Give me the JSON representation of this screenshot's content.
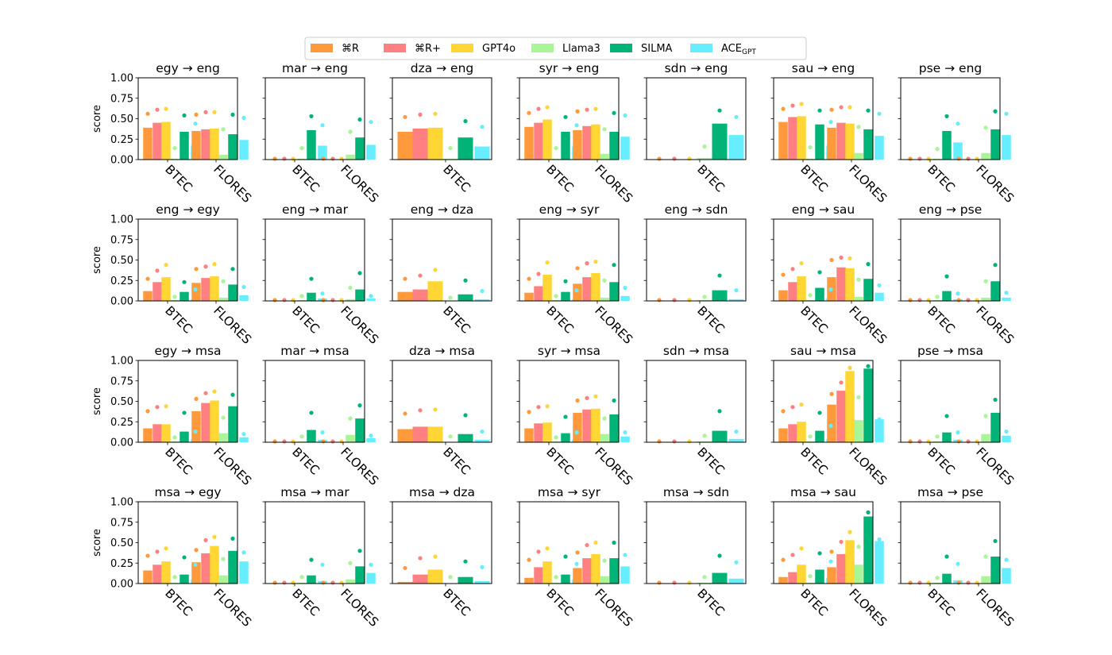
{
  "legend": [
    {
      "label": "⌘R",
      "color": "#ff9a3c"
    },
    {
      "label": "⌘R+",
      "color": "#ff8080"
    },
    {
      "label": "GPT4o",
      "color": "#ffd633"
    },
    {
      "label": "Llama3",
      "color": "#aaf598"
    },
    {
      "label": "SILMA",
      "color": "#00b377"
    },
    {
      "label": "ACE",
      "label_sub": "GPT",
      "color": "#66eeff"
    }
  ],
  "ylabel": "score",
  "y_ticks": [
    "0.00",
    "0.25",
    "0.50",
    "0.75",
    "1.00"
  ],
  "chart_data": {
    "type": "bar",
    "layout": "grid 4 rows x 7 columns",
    "ylim": [
      0,
      1
    ],
    "ylabel": "score",
    "series_names": [
      "⌘R",
      "⌘R+",
      "GPT4o",
      "Llama3",
      "SILMA",
      "ACE_GPT"
    ],
    "value_encoding": "bars = values, dots = dots",
    "panels": [
      {
        "title": "egy → eng",
        "categories": [
          "BTEC",
          "FLORES"
        ],
        "values": [
          [
            0.39,
            0.45,
            0.46,
            0.01,
            0.34,
            0.17
          ],
          [
            0.35,
            0.37,
            0.38,
            0.06,
            0.31,
            0.24
          ]
        ],
        "dots": [
          [
            0.56,
            0.61,
            0.62,
            0.14,
            0.54,
            0.44
          ],
          [
            0.55,
            0.58,
            0.58,
            0.37,
            0.55,
            0.51
          ]
        ]
      },
      {
        "title": "mar → eng",
        "categories": [
          "BTEC",
          "FLORES"
        ],
        "values": [
          [
            0.0,
            0.0,
            0.0,
            0.01,
            0.36,
            0.17
          ],
          [
            0.0,
            0.0,
            0.0,
            0.06,
            0.27,
            0.18
          ]
        ],
        "dots": [
          [
            0.01,
            0.01,
            0.01,
            0.14,
            0.53,
            0.42
          ],
          [
            0.01,
            0.01,
            0.01,
            0.34,
            0.49,
            0.46
          ]
        ]
      },
      {
        "title": "dza → eng",
        "categories": [
          "BTEC"
        ],
        "values": [
          [
            0.34,
            0.38,
            0.39,
            0.01,
            0.27,
            0.16
          ]
        ],
        "dots": [
          [
            0.52,
            0.55,
            0.56,
            0.14,
            0.47,
            0.4
          ]
        ]
      },
      {
        "title": "syr → eng",
        "categories": [
          "BTEC",
          "FLORES"
        ],
        "values": [
          [
            0.4,
            0.45,
            0.49,
            0.01,
            0.34,
            0.16
          ],
          [
            0.36,
            0.41,
            0.43,
            0.07,
            0.34,
            0.28
          ]
        ],
        "dots": [
          [
            0.57,
            0.62,
            0.64,
            0.14,
            0.52,
            0.42
          ],
          [
            0.59,
            0.61,
            0.62,
            0.37,
            0.57,
            0.54
          ]
        ]
      },
      {
        "title": "sdn → eng",
        "categories": [
          "BTEC"
        ],
        "values": [
          [
            0.0,
            0.0,
            0.0,
            0.02,
            0.44,
            0.3
          ]
        ],
        "dots": [
          [
            0.01,
            0.01,
            0.01,
            0.16,
            0.6,
            0.52
          ]
        ]
      },
      {
        "title": "sau → eng",
        "categories": [
          "BTEC",
          "FLORES"
        ],
        "values": [
          [
            0.46,
            0.52,
            0.53,
            0.01,
            0.43,
            0.17
          ],
          [
            0.39,
            0.45,
            0.44,
            0.08,
            0.37,
            0.29
          ]
        ],
        "dots": [
          [
            0.62,
            0.66,
            0.68,
            0.15,
            0.6,
            0.46
          ],
          [
            0.61,
            0.64,
            0.64,
            0.4,
            0.6,
            0.56
          ]
        ]
      },
      {
        "title": "pse → eng",
        "categories": [
          "BTEC",
          "FLORES"
        ],
        "values": [
          [
            0.0,
            0.0,
            0.0,
            0.01,
            0.35,
            0.21
          ],
          [
            0.0,
            0.0,
            0.0,
            0.08,
            0.37,
            0.3
          ]
        ],
        "dots": [
          [
            0.01,
            0.01,
            0.01,
            0.13,
            0.53,
            0.44
          ],
          [
            0.01,
            0.01,
            0.01,
            0.39,
            0.59,
            0.56
          ]
        ]
      },
      {
        "title": "eng → egy",
        "categories": [
          "BTEC",
          "FLORES"
        ],
        "values": [
          [
            0.12,
            0.23,
            0.29,
            0.01,
            0.11,
            0.02
          ],
          [
            0.22,
            0.28,
            0.3,
            0.04,
            0.2,
            0.07
          ]
        ],
        "dots": [
          [
            0.27,
            0.37,
            0.44,
            0.05,
            0.23,
            0.14
          ],
          [
            0.39,
            0.42,
            0.45,
            0.24,
            0.39,
            0.17
          ]
        ]
      },
      {
        "title": "eng → mar",
        "categories": [
          "BTEC",
          "FLORES"
        ],
        "values": [
          [
            0.0,
            0.0,
            0.0,
            0.01,
            0.1,
            0.03
          ],
          [
            0.0,
            0.0,
            0.0,
            0.02,
            0.14,
            0.03
          ]
        ],
        "dots": [
          [
            0.01,
            0.01,
            0.01,
            0.06,
            0.27,
            0.09
          ],
          [
            0.01,
            0.01,
            0.01,
            0.16,
            0.34,
            0.06
          ]
        ]
      },
      {
        "title": "eng → dza",
        "categories": [
          "BTEC"
        ],
        "values": [
          [
            0.11,
            0.14,
            0.24,
            0.0,
            0.08,
            0.02
          ]
        ],
        "dots": [
          [
            0.27,
            0.31,
            0.38,
            0.04,
            0.25,
            0.12
          ]
        ]
      },
      {
        "title": "eng → syr",
        "categories": [
          "BTEC",
          "FLORES"
        ],
        "values": [
          [
            0.1,
            0.18,
            0.32,
            0.01,
            0.11,
            0.02
          ],
          [
            0.21,
            0.29,
            0.34,
            0.04,
            0.23,
            0.06
          ]
        ],
        "dots": [
          [
            0.27,
            0.33,
            0.47,
            0.06,
            0.24,
            0.13
          ],
          [
            0.4,
            0.46,
            0.48,
            0.25,
            0.44,
            0.16
          ]
        ]
      },
      {
        "title": "eng → sdn",
        "categories": [
          "BTEC"
        ],
        "values": [
          [
            0.0,
            0.0,
            0.0,
            0.01,
            0.13,
            0.02
          ]
        ],
        "dots": [
          [
            0.01,
            0.01,
            0.01,
            0.05,
            0.31,
            0.13
          ]
        ]
      },
      {
        "title": "eng → sau",
        "categories": [
          "BTEC",
          "FLORES"
        ],
        "values": [
          [
            0.13,
            0.23,
            0.3,
            0.01,
            0.16,
            0.03
          ],
          [
            0.29,
            0.41,
            0.4,
            0.05,
            0.27,
            0.1
          ]
        ],
        "dots": [
          [
            0.32,
            0.39,
            0.46,
            0.07,
            0.35,
            0.14
          ],
          [
            0.5,
            0.53,
            0.52,
            0.26,
            0.45,
            0.19
          ]
        ]
      },
      {
        "title": "eng → pse",
        "categories": [
          "BTEC",
          "FLORES"
        ],
        "values": [
          [
            0.0,
            0.0,
            0.0,
            0.01,
            0.12,
            0.02
          ],
          [
            0.0,
            0.0,
            0.0,
            0.04,
            0.24,
            0.04
          ]
        ],
        "dots": [
          [
            0.01,
            0.01,
            0.01,
            0.05,
            0.3,
            0.09
          ],
          [
            0.01,
            0.01,
            0.01,
            0.24,
            0.44,
            0.1
          ]
        ]
      },
      {
        "title": "egy → msa",
        "categories": [
          "BTEC",
          "FLORES"
        ],
        "values": [
          [
            0.17,
            0.22,
            0.22,
            0.01,
            0.13,
            0.04
          ],
          [
            0.38,
            0.48,
            0.51,
            0.11,
            0.44,
            0.06
          ]
        ],
        "dots": [
          [
            0.38,
            0.43,
            0.44,
            0.06,
            0.36,
            0.13
          ],
          [
            0.53,
            0.6,
            0.62,
            0.3,
            0.58,
            0.1
          ]
        ]
      },
      {
        "title": "mar → msa",
        "categories": [
          "BTEC",
          "FLORES"
        ],
        "values": [
          [
            0.0,
            0.0,
            0.0,
            0.01,
            0.15,
            0.03
          ],
          [
            0.0,
            0.0,
            0.0,
            0.09,
            0.29,
            0.05
          ]
        ],
        "dots": [
          [
            0.01,
            0.01,
            0.01,
            0.07,
            0.36,
            0.12
          ],
          [
            0.01,
            0.01,
            0.01,
            0.29,
            0.45,
            0.08
          ]
        ]
      },
      {
        "title": "dza → msa",
        "categories": [
          "BTEC"
        ],
        "values": [
          [
            0.16,
            0.19,
            0.19,
            0.0,
            0.1,
            0.03
          ]
        ],
        "dots": [
          [
            0.35,
            0.39,
            0.4,
            0.07,
            0.33,
            0.13
          ]
        ]
      },
      {
        "title": "syr → msa",
        "categories": [
          "BTEC",
          "FLORES"
        ],
        "values": [
          [
            0.17,
            0.23,
            0.24,
            0.01,
            0.11,
            0.03
          ],
          [
            0.36,
            0.4,
            0.41,
            0.1,
            0.34,
            0.07
          ]
        ],
        "dots": [
          [
            0.37,
            0.43,
            0.44,
            0.06,
            0.31,
            0.12
          ],
          [
            0.51,
            0.54,
            0.56,
            0.29,
            0.51,
            0.12
          ]
        ]
      },
      {
        "title": "sdn → msa",
        "categories": [
          "BTEC"
        ],
        "values": [
          [
            0.0,
            0.0,
            0.0,
            0.01,
            0.14,
            0.04
          ]
        ],
        "dots": [
          [
            0.01,
            0.01,
            0.01,
            0.08,
            0.38,
            0.13
          ]
        ]
      },
      {
        "title": "sau → msa",
        "categories": [
          "BTEC",
          "FLORES"
        ],
        "values": [
          [
            0.17,
            0.22,
            0.25,
            0.01,
            0.14,
            0.04
          ],
          [
            0.46,
            0.63,
            0.87,
            0.27,
            0.9,
            0.28
          ]
        ],
        "dots": [
          [
            0.38,
            0.43,
            0.46,
            0.07,
            0.36,
            0.2
          ],
          [
            0.59,
            0.73,
            0.91,
            0.55,
            0.93,
            0.28
          ]
        ]
      },
      {
        "title": "pse → msa",
        "categories": [
          "BTEC",
          "FLORES"
        ],
        "values": [
          [
            0.0,
            0.0,
            0.0,
            0.01,
            0.12,
            0.03
          ],
          [
            0.0,
            0.0,
            0.0,
            0.1,
            0.36,
            0.08
          ]
        ],
        "dots": [
          [
            0.01,
            0.01,
            0.01,
            0.07,
            0.32,
            0.12
          ],
          [
            0.01,
            0.01,
            0.01,
            0.32,
            0.52,
            0.13
          ]
        ]
      },
      {
        "title": "msa → egy",
        "categories": [
          "BTEC",
          "FLORES"
        ],
        "values": [
          [
            0.16,
            0.23,
            0.27,
            0.01,
            0.11,
            0.05
          ],
          [
            0.26,
            0.37,
            0.46,
            0.1,
            0.4,
            0.27
          ]
        ],
        "dots": [
          [
            0.34,
            0.39,
            0.43,
            0.08,
            0.32,
            0.23
          ],
          [
            0.41,
            0.53,
            0.57,
            0.3,
            0.55,
            0.38
          ]
        ]
      },
      {
        "title": "msa → mar",
        "categories": [
          "BTEC",
          "FLORES"
        ],
        "values": [
          [
            0.0,
            0.0,
            0.0,
            0.01,
            0.1,
            0.03
          ],
          [
            0.0,
            0.0,
            0.0,
            0.05,
            0.21,
            0.13
          ]
        ],
        "dots": [
          [
            0.01,
            0.01,
            0.01,
            0.08,
            0.29,
            0.23
          ],
          [
            0.01,
            0.01,
            0.01,
            0.25,
            0.4,
            0.23
          ]
        ]
      },
      {
        "title": "msa → dza",
        "categories": [
          "BTEC"
        ],
        "values": [
          [
            0.02,
            0.11,
            0.17,
            0.0,
            0.08,
            0.03
          ]
        ],
        "dots": [
          [
            0.19,
            0.31,
            0.33,
            0.08,
            0.27,
            0.2
          ]
        ]
      },
      {
        "title": "msa → syr",
        "categories": [
          "BTEC",
          "FLORES"
        ],
        "values": [
          [
            0.07,
            0.2,
            0.27,
            0.01,
            0.11,
            0.05
          ],
          [
            0.19,
            0.31,
            0.36,
            0.09,
            0.31,
            0.21
          ]
        ],
        "dots": [
          [
            0.29,
            0.39,
            0.43,
            0.08,
            0.33,
            0.24
          ],
          [
            0.38,
            0.47,
            0.5,
            0.28,
            0.5,
            0.35
          ]
        ]
      },
      {
        "title": "msa → sdn",
        "categories": [
          "BTEC"
        ],
        "values": [
          [
            0.0,
            0.0,
            0.0,
            0.01,
            0.13,
            0.06
          ]
        ],
        "dots": [
          [
            0.01,
            0.01,
            0.01,
            0.08,
            0.34,
            0.26
          ]
        ]
      },
      {
        "title": "msa → sau",
        "categories": [
          "BTEC",
          "FLORES"
        ],
        "values": [
          [
            0.08,
            0.14,
            0.23,
            0.01,
            0.17,
            0.07
          ],
          [
            0.2,
            0.36,
            0.53,
            0.23,
            0.82,
            0.52
          ]
        ],
        "dots": [
          [
            0.29,
            0.35,
            0.43,
            0.09,
            0.37,
            0.27
          ],
          [
            0.39,
            0.51,
            0.63,
            0.45,
            0.87,
            0.54
          ]
        ]
      },
      {
        "title": "msa → pse",
        "categories": [
          "BTEC",
          "FLORES"
        ],
        "values": [
          [
            0.0,
            0.0,
            0.0,
            0.01,
            0.12,
            0.04
          ],
          [
            0.0,
            0.0,
            0.0,
            0.09,
            0.33,
            0.19
          ]
        ],
        "dots": [
          [
            0.01,
            0.01,
            0.01,
            0.07,
            0.33,
            0.24
          ],
          [
            0.01,
            0.01,
            0.01,
            0.33,
            0.52,
            0.29
          ]
        ]
      }
    ]
  }
}
